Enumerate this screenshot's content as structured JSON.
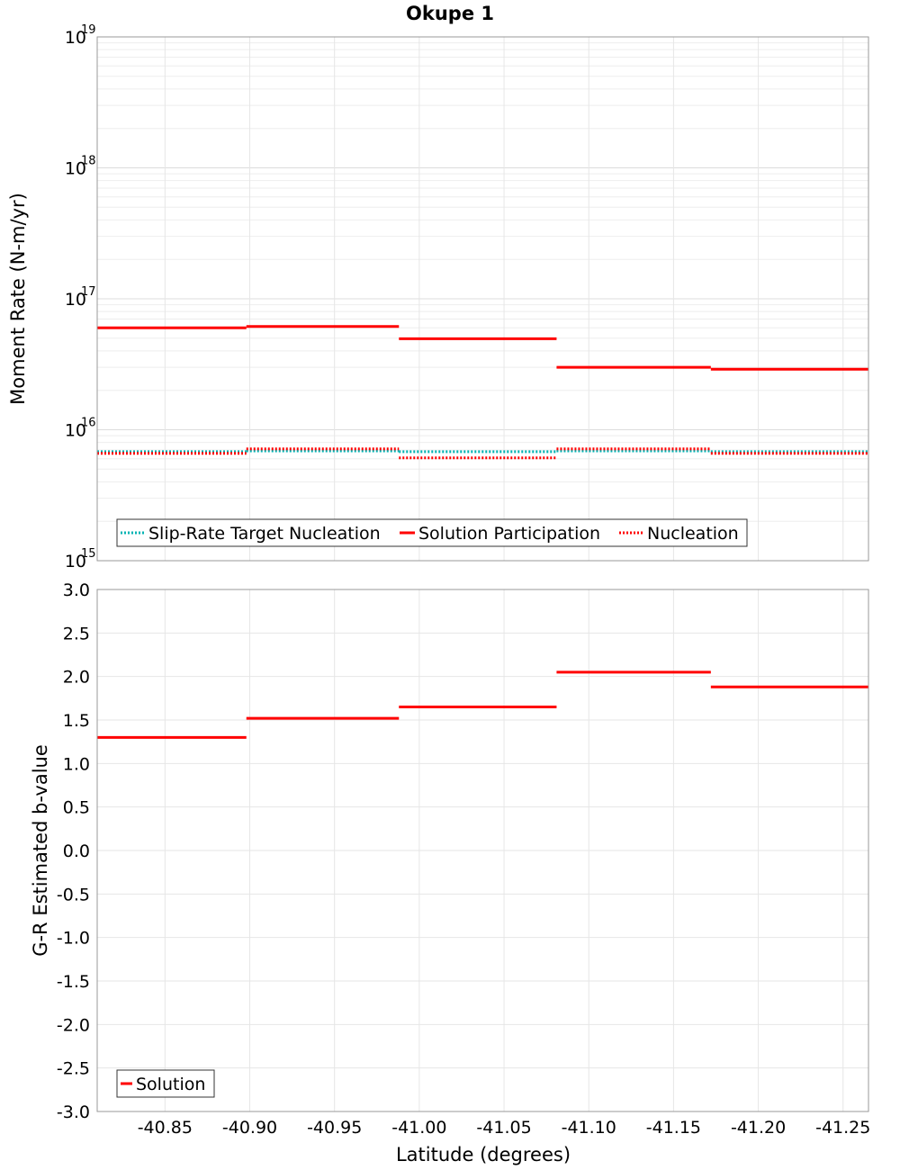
{
  "chart_data": [
    {
      "type": "line",
      "title": "Okupe 1",
      "ylabel": "Moment Rate (N-m/yr)",
      "xlabel": "",
      "yscale": "log",
      "ylim": [
        1000000000000000.0,
        1e+19
      ],
      "xlim": [
        -40.81,
        -41.265
      ],
      "ytick_labels": [
        {
          "base": "10",
          "exp": "19",
          "value": 1e+19
        },
        {
          "base": "10",
          "exp": "18",
          "value": 1e+18
        },
        {
          "base": "10",
          "exp": "17",
          "value": 1e+17
        },
        {
          "base": "10",
          "exp": "16",
          "value": 1e+16
        },
        {
          "base": "10",
          "exp": "15",
          "value": 1000000000000000.0
        }
      ],
      "legend_position": "bottom-left",
      "series": [
        {
          "name": "Slip-Rate Target Nucleation",
          "style": "dotted",
          "color": "#00b3b3",
          "segments": [
            {
              "x0": -40.81,
              "x1": -40.898,
              "y": 6800000000000000.0
            },
            {
              "x0": -40.898,
              "x1": -40.988,
              "y": 6900000000000000.0
            },
            {
              "x0": -40.988,
              "x1": -41.081,
              "y": 6800000000000000.0
            },
            {
              "x0": -41.081,
              "x1": -41.172,
              "y": 6900000000000000.0
            },
            {
              "x0": -41.172,
              "x1": -41.265,
              "y": 6800000000000000.0
            }
          ]
        },
        {
          "name": "Solution Participation",
          "style": "solid",
          "color": "#ff0000",
          "segments": [
            {
              "x0": -40.81,
              "x1": -40.898,
              "y": 6e+16
            },
            {
              "x0": -40.898,
              "x1": -40.988,
              "y": 6.15e+16
            },
            {
              "x0": -40.988,
              "x1": -41.081,
              "y": 4.95e+16
            },
            {
              "x0": -41.081,
              "x1": -41.172,
              "y": 3e+16
            },
            {
              "x0": -41.172,
              "x1": -41.265,
              "y": 2.9e+16
            }
          ]
        },
        {
          "name": "Nucleation",
          "style": "dotted",
          "color": "#ff0000",
          "segments": [
            {
              "x0": -40.81,
              "x1": -40.898,
              "y": 6600000000000000.0
            },
            {
              "x0": -40.898,
              "x1": -40.988,
              "y": 7150000000000000.0
            },
            {
              "x0": -40.988,
              "x1": -41.081,
              "y": 6100000000000000.0
            },
            {
              "x0": -41.081,
              "x1": -41.172,
              "y": 7150000000000000.0
            },
            {
              "x0": -41.172,
              "x1": -41.265,
              "y": 6600000000000000.0
            }
          ]
        }
      ]
    },
    {
      "type": "line",
      "title": "",
      "ylabel": "G-R Estimated b-value",
      "xlabel": "Latitude (degrees)",
      "ylim": [
        -3.0,
        3.0
      ],
      "xlim": [
        -40.81,
        -41.265
      ],
      "yticks": [
        3.0,
        2.5,
        2.0,
        1.5,
        1.0,
        0.5,
        0.0,
        -0.5,
        -1.0,
        -1.5,
        -2.0,
        -2.5,
        -3.0
      ],
      "ytick_labels": [
        "3.0",
        "2.5",
        "2.0",
        "1.5",
        "1.0",
        "0.5",
        "0.0",
        "-0.5",
        "-1.0",
        "-1.5",
        "-2.0",
        "-2.5",
        "-3.0"
      ],
      "xticks": [
        -40.85,
        -40.9,
        -40.95,
        -41.0,
        -41.05,
        -41.1,
        -41.15,
        -41.2,
        -41.25
      ],
      "xtick_labels": [
        "-40.85",
        "-40.90",
        "-40.95",
        "-41.00",
        "-41.05",
        "-41.10",
        "-41.15",
        "-41.20",
        "-41.25"
      ],
      "legend_position": "bottom-left",
      "series": [
        {
          "name": "Solution",
          "style": "solid",
          "color": "#ff0000",
          "segments": [
            {
              "x0": -40.81,
              "x1": -40.898,
              "y": 1.3
            },
            {
              "x0": -40.898,
              "x1": -40.988,
              "y": 1.52
            },
            {
              "x0": -40.988,
              "x1": -41.081,
              "y": 1.65
            },
            {
              "x0": -41.081,
              "x1": -41.172,
              "y": 2.05
            },
            {
              "x0": -41.172,
              "x1": -41.265,
              "y": 1.88
            }
          ]
        }
      ]
    }
  ]
}
